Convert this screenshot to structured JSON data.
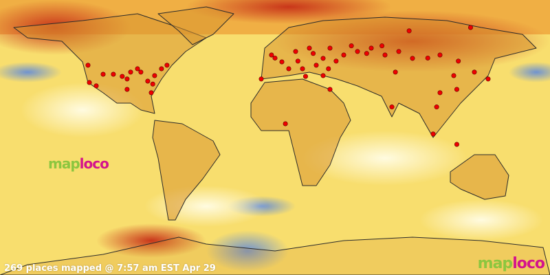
{
  "caption": "269 places mapped @ 7:57 am EST Apr 29",
  "logo": {
    "part1": "map",
    "part2": "loco"
  },
  "colors": {
    "marker": "#ee0000",
    "land": "#c98a2a",
    "warm": "#f5c542",
    "hot": "#d4421a",
    "cold": "#7d9fd6"
  },
  "markers": [
    [
      -122.4,
      47.3
    ],
    [
      -121.5,
      36
    ],
    [
      -117,
      33.8
    ],
    [
      -112.5,
      41.4
    ],
    [
      -105.8,
      41.4
    ],
    [
      -96.8,
      38.3
    ],
    [
      -94.5,
      42.8
    ],
    [
      -87.8,
      42.8
    ],
    [
      -83.3,
      36.9
    ],
    [
      -78.8,
      40.5
    ],
    [
      -74.3,
      45
    ],
    [
      -70.7,
      47.3
    ],
    [
      -81,
      29.3
    ],
    [
      -96.8,
      31.5
    ],
    [
      -2.3,
      54
    ],
    [
      4.5,
      49.5
    ],
    [
      9,
      45
    ],
    [
      13.5,
      56.3
    ],
    [
      22.5,
      58.5
    ],
    [
      31.5,
      51.8
    ],
    [
      36,
      58.5
    ],
    [
      45,
      54
    ],
    [
      54,
      56.3
    ],
    [
      63,
      58.5
    ],
    [
      72,
      54
    ],
    [
      81,
      56.3
    ],
    [
      90,
      51.8
    ],
    [
      108,
      54
    ],
    [
      128,
      72
    ],
    [
      87.8,
      69.8
    ],
    [
      31.5,
      40.5
    ],
    [
      36,
      31.5
    ],
    [
      -9,
      38.3
    ],
    [
      18,
      45
    ],
    [
      27,
      47.3
    ],
    [
      117,
      40.5
    ],
    [
      130.5,
      42.8
    ],
    [
      139.5,
      38.3
    ],
    [
      119,
      31.5
    ],
    [
      108,
      29.3
    ],
    [
      105.8,
      20
    ],
    [
      103.5,
      2.3
    ],
    [
      119,
      -4.5
    ],
    [
      76.5,
      20
    ],
    [
      78.8,
      42.8
    ],
    [
      6.8,
      9
    ],
    [
      0,
      52
    ],
    [
      15,
      50
    ],
    [
      25,
      55
    ],
    [
      40,
      50
    ],
    [
      50,
      60
    ],
    [
      60,
      55
    ],
    [
      70,
      60
    ],
    [
      100,
      52
    ],
    [
      120,
      50
    ],
    [
      -90,
      45
    ],
    [
      -100,
      40
    ],
    [
      -80,
      35
    ],
    [
      20,
      40
    ],
    [
      35,
      45
    ]
  ]
}
